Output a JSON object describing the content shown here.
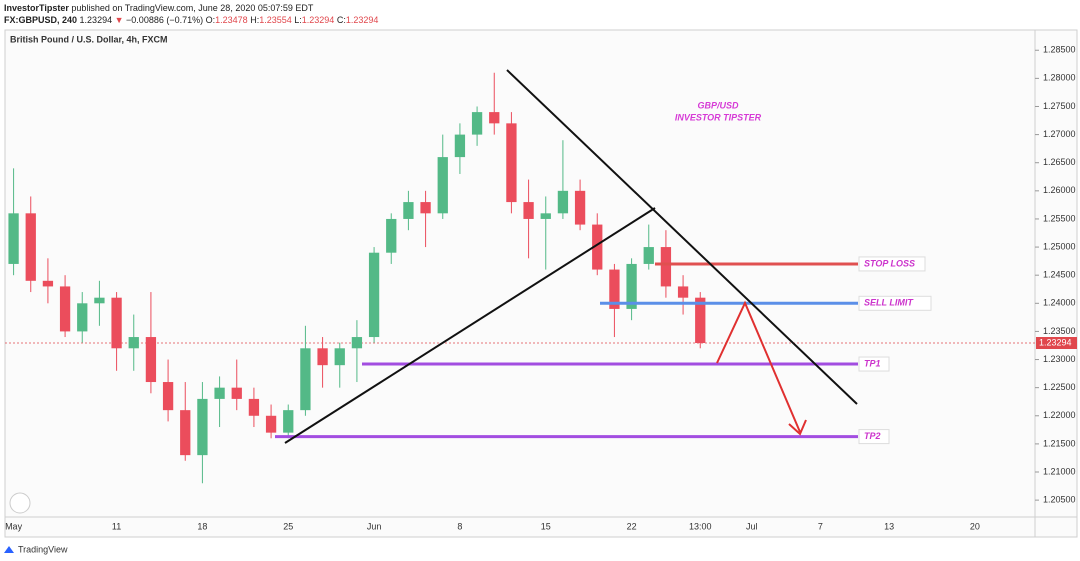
{
  "header": {
    "author": "InvestorTipster",
    "published": "published on TradingView.com, June 28, 2020 05:07:59 EDT",
    "symbol": "FX:GBPUSD, 240",
    "last": "1.23294",
    "arrow": "▼",
    "change": "−0.00886 (−0.71%)",
    "o_label": "O:",
    "o": "1.23478",
    "h_label": "H:",
    "h": "1.23554",
    "l_label": "L:",
    "l": "1.23294",
    "c_label": "C:",
    "c": "1.23294"
  },
  "footer": {
    "brand": "TradingView"
  },
  "chart_data": {
    "type": "candlestick",
    "title": "British Pound / U.S. Dollar, 4h, FXCM",
    "annotation": [
      "GBP/USD",
      "INVESTOR TIPSTER"
    ],
    "up_color": "#53b987",
    "down_color": "#eb4d5c",
    "categories": [
      "May",
      null,
      null,
      null,
      null,
      null,
      "11",
      null,
      null,
      null,
      null,
      "18",
      null,
      null,
      null,
      null,
      "25",
      null,
      null,
      null,
      null,
      "Jun",
      null,
      null,
      null,
      null,
      "8",
      null,
      null,
      null,
      null,
      "15",
      null,
      null,
      null,
      null,
      "22",
      null,
      null,
      null,
      "13:00",
      null,
      null,
      "Jul",
      null,
      null,
      null,
      "7",
      null,
      null,
      null,
      "13",
      null,
      null,
      null,
      null,
      "20",
      null,
      null,
      null
    ],
    "open": [
      1.247,
      1.256,
      1.244,
      1.243,
      1.235,
      1.24,
      1.241,
      1.232,
      1.234,
      1.226,
      1.221,
      1.213,
      1.223,
      1.225,
      1.223,
      1.22,
      1.217,
      1.221,
      1.232,
      1.229,
      1.232,
      1.234,
      1.249,
      1.255,
      1.258,
      1.256,
      1.266,
      1.27,
      1.274,
      1.272,
      1.258,
      1.255,
      1.256,
      1.26,
      1.254,
      1.246,
      1.239,
      1.247,
      1.25,
      1.243,
      1.241,
      null,
      null,
      null,
      null,
      null,
      null,
      null,
      null,
      null,
      null,
      null,
      null,
      null,
      null,
      null,
      null,
      null,
      null,
      null
    ],
    "high": [
      1.264,
      1.259,
      1.248,
      1.245,
      1.242,
      1.244,
      1.242,
      1.238,
      1.242,
      1.23,
      1.226,
      1.226,
      1.227,
      1.23,
      1.225,
      1.222,
      1.222,
      1.236,
      1.234,
      1.233,
      1.237,
      1.25,
      1.256,
      1.26,
      1.26,
      1.27,
      1.272,
      1.275,
      1.281,
      1.274,
      1.262,
      1.259,
      1.269,
      1.262,
      1.256,
      1.247,
      1.248,
      1.254,
      1.253,
      1.245,
      1.242,
      null,
      null,
      null,
      null,
      null,
      null,
      null,
      null,
      null,
      null,
      null,
      null,
      null,
      null,
      null,
      null,
      null,
      null,
      null
    ],
    "low": [
      1.245,
      1.242,
      1.24,
      1.234,
      1.233,
      1.236,
      1.228,
      1.228,
      1.224,
      1.219,
      1.212,
      1.208,
      1.218,
      1.221,
      1.218,
      1.216,
      1.216,
      1.22,
      1.225,
      1.225,
      1.226,
      1.233,
      1.247,
      1.253,
      1.25,
      1.255,
      1.263,
      1.268,
      1.27,
      1.256,
      1.248,
      1.246,
      1.255,
      1.253,
      1.245,
      1.234,
      1.237,
      1.246,
      1.241,
      1.238,
      1.232,
      null,
      null,
      null,
      null,
      null,
      null,
      null,
      null,
      null,
      null,
      null,
      null,
      null,
      null,
      null,
      null,
      null,
      null,
      null
    ],
    "close": [
      1.256,
      1.244,
      1.243,
      1.235,
      1.24,
      1.241,
      1.232,
      1.234,
      1.226,
      1.221,
      1.213,
      1.223,
      1.225,
      1.223,
      1.22,
      1.217,
      1.221,
      1.232,
      1.229,
      1.232,
      1.234,
      1.249,
      1.255,
      1.258,
      1.256,
      1.266,
      1.27,
      1.274,
      1.272,
      1.258,
      1.255,
      1.256,
      1.26,
      1.254,
      1.246,
      1.239,
      1.247,
      1.25,
      1.243,
      1.241,
      1.23294,
      null,
      null,
      null,
      null,
      null,
      null,
      null,
      null,
      null,
      null,
      null,
      null,
      null,
      null,
      null,
      null,
      null,
      null,
      null
    ],
    "ylim": [
      1.202,
      1.2886
    ],
    "yticks": [
      {
        "value": 1.205,
        "label": "1.20500"
      },
      {
        "value": 1.21,
        "label": "1.21000"
      },
      {
        "value": 1.215,
        "label": "1.21500"
      },
      {
        "value": 1.22,
        "label": "1.22000"
      },
      {
        "value": 1.225,
        "label": "1.22500"
      },
      {
        "value": 1.23,
        "label": "1.23000"
      },
      {
        "value": 1.235,
        "label": "1.23500"
      },
      {
        "value": 1.24,
        "label": "1.24000"
      },
      {
        "value": 1.245,
        "label": "1.24500"
      },
      {
        "value": 1.25,
        "label": "1.25000"
      },
      {
        "value": 1.255,
        "label": "1.25500"
      },
      {
        "value": 1.26,
        "label": "1.26000"
      },
      {
        "value": 1.265,
        "label": "1.26500"
      },
      {
        "value": 1.27,
        "label": "1.27000"
      },
      {
        "value": 1.275,
        "label": "1.27500"
      },
      {
        "value": 1.28,
        "label": "1.28000"
      },
      {
        "value": 1.285,
        "label": "1.28500"
      }
    ],
    "last_price": {
      "value": 1.23294,
      "label": "1.23294",
      "color": "#e0474c"
    },
    "levels": [
      {
        "label": "STOP LOSS",
        "value": 1.247,
        "color": "#e05050"
      },
      {
        "label": "SELL LIMIT",
        "value": 1.24,
        "color": "#5b8fe8"
      },
      {
        "label": "TP1",
        "value": 1.2292,
        "color": "#a24de0"
      },
      {
        "label": "TP2",
        "value": 1.2163,
        "color": "#a24de0"
      }
    ]
  }
}
